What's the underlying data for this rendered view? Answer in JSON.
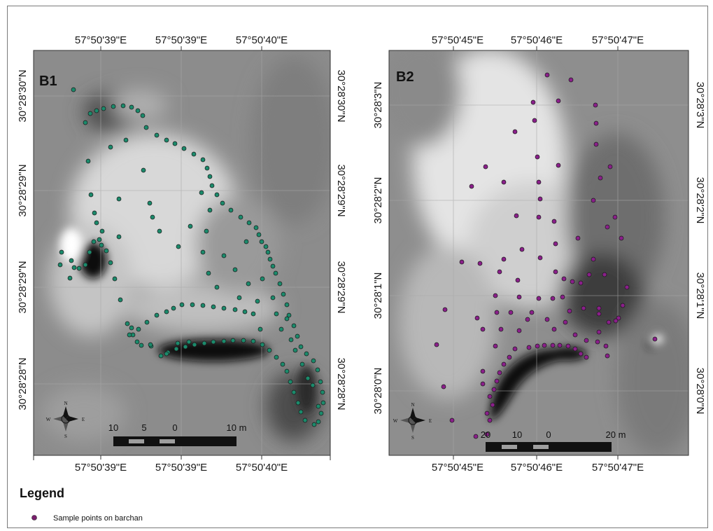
{
  "panels": [
    {
      "id": "B1",
      "top_labels": [
        "57°50'39\"E",
        "57°50'39\"E",
        "57°50'40\"E"
      ],
      "bottom_labels": [
        "57°50'39\"E",
        "57°50'39\"E",
        "57°50'40\"E"
      ],
      "left_labels": [
        "30°28'30\"N",
        "30°28'29\"N",
        "30°28'29\"N",
        "30°28'28\"N"
      ],
      "right_labels": [
        "30°28'30\"N",
        "30°28'29\"N",
        "30°28'29\"N",
        "30°28'28\"N"
      ],
      "scale_labels": [
        "10",
        "5",
        "0",
        "10 m"
      ],
      "point_color": "#1b8a6b"
    },
    {
      "id": "B2",
      "top_labels": [
        "57°50'45\"E",
        "57°50'46\"E",
        "57°50'47\"E"
      ],
      "bottom_labels": [
        "57°50'45\"E",
        "57°50'46\"E",
        "57°50'47\"E"
      ],
      "left_labels": [
        "30°28'3\"N",
        "30°28'2\"N",
        "30°28'1\"N",
        "30°28'0\"N"
      ],
      "right_labels": [
        "30°28'3\"N",
        "30°28'2\"N",
        "30°28'1\"N",
        "30°28'0\"N"
      ],
      "scale_labels": [
        "20",
        "10",
        "0",
        "20 m"
      ],
      "point_color": "#8a1f8a"
    }
  ],
  "compass": {
    "n": "N",
    "s": "S",
    "e": "E",
    "w": "W"
  },
  "legend": {
    "title": "Legend",
    "items": [
      {
        "label": "Sample points on barchan",
        "color": "#7a1f6e"
      }
    ]
  }
}
